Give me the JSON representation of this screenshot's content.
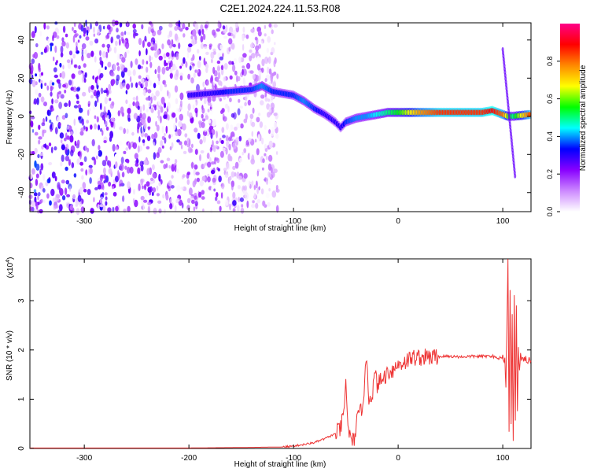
{
  "title": "C2E1.2024.224.11.53.R08",
  "chart_data": [
    {
      "type": "heatmap",
      "title": "C2E1.2024.224.11.53.R08",
      "xlabel": "Height of straight line (km)",
      "ylabel": "Frequency (Hz)",
      "xlim": [
        -352,
        127
      ],
      "ylim": [
        -50,
        49
      ],
      "x_ticks": [
        -300,
        -200,
        -100,
        0,
        100
      ],
      "y_ticks": [
        -40,
        -20,
        0,
        20,
        40
      ],
      "colorbar": {
        "label": "Normalized spectral amplitude",
        "range": [
          0,
          1
        ],
        "ticks": [
          0.0,
          0.2,
          0.4,
          0.6,
          0.8
        ],
        "tick_labels": [
          "0.0",
          "0.2",
          "0.4",
          "0.6",
          "0.8"
        ],
        "colormap": [
          "#ffffff",
          "#cc88ff",
          "#8800ff",
          "#0000ff",
          "#00ffff",
          "#00ff00",
          "#ffff00",
          "#ff8800",
          "#ff0000",
          "#ff0088"
        ]
      },
      "ridge": {
        "x": [
          -200,
          -180,
          -160,
          -140,
          -130,
          -120,
          -110,
          -100,
          -90,
          -80,
          -70,
          -60,
          -55,
          -50,
          -40,
          -30,
          -20,
          -10,
          0,
          20,
          40,
          60,
          80,
          90,
          100,
          105,
          110,
          127
        ],
        "y": [
          11,
          12,
          13,
          14,
          16,
          13,
          12,
          11,
          8,
          4,
          1,
          -3,
          -6,
          -3,
          -1,
          0,
          1,
          2,
          2,
          2,
          2,
          2,
          2,
          3,
          1,
          0,
          0,
          1
        ],
        "amplitude": [
          0.3,
          0.3,
          0.35,
          0.35,
          0.4,
          0.35,
          0.35,
          0.35,
          0.4,
          0.35,
          0.3,
          0.3,
          0.3,
          0.35,
          0.4,
          0.4,
          0.45,
          0.5,
          0.55,
          0.75,
          0.85,
          0.85,
          0.85,
          0.9,
          0.8,
          0.6,
          0.5,
          0.85
        ]
      },
      "noise_region_x": [
        -352,
        -115
      ]
    },
    {
      "type": "line",
      "xlabel": "Height of straight line (km)",
      "ylabel": "SNR (10 * v/v)",
      "y_exponent_label": "(x10",
      "y_exponent": "4",
      "y_exponent_close": ")",
      "xlim": [
        -352,
        127
      ],
      "ylim": [
        0,
        3.85
      ],
      "x_ticks": [
        -300,
        -200,
        -100,
        0,
        100
      ],
      "y_ticks": [
        0,
        1,
        2,
        3
      ],
      "color": "#ee3333",
      "x": [
        -352,
        -300,
        -200,
        -150,
        -110,
        -100,
        -90,
        -80,
        -70,
        -60,
        -55,
        -52,
        -50,
        -48,
        -45,
        -42,
        -40,
        -35,
        -32,
        -30,
        -28,
        -25,
        -22,
        -20,
        -15,
        -10,
        -5,
        0,
        5,
        10,
        15,
        20,
        30,
        40,
        50,
        60,
        70,
        80,
        90,
        95,
        98,
        100,
        102,
        103,
        104,
        105,
        106,
        107,
        108,
        109,
        110,
        111,
        112,
        113,
        114,
        115,
        116,
        117,
        118,
        120,
        122,
        124,
        127
      ],
      "y": [
        0.01,
        0.01,
        0.01,
        0.02,
        0.03,
        0.05,
        0.08,
        0.12,
        0.2,
        0.3,
        0.4,
        0.7,
        1.3,
        0.5,
        0.1,
        0.2,
        0.5,
        0.8,
        1.3,
        1.9,
        1.0,
        1.1,
        1.5,
        1.3,
        1.4,
        1.55,
        1.6,
        1.7,
        1.75,
        1.8,
        1.85,
        1.85,
        1.85,
        1.87,
        1.87,
        1.86,
        1.87,
        1.87,
        1.88,
        1.82,
        1.85,
        1.85,
        1.8,
        1.3,
        2.5,
        3.9,
        0.3,
        3.2,
        0.5,
        2.8,
        0.1,
        3.1,
        0.6,
        2.9,
        0.7,
        2.0,
        1.6,
        1.9,
        1.75,
        1.8,
        1.8,
        1.8,
        1.78
      ]
    }
  ]
}
